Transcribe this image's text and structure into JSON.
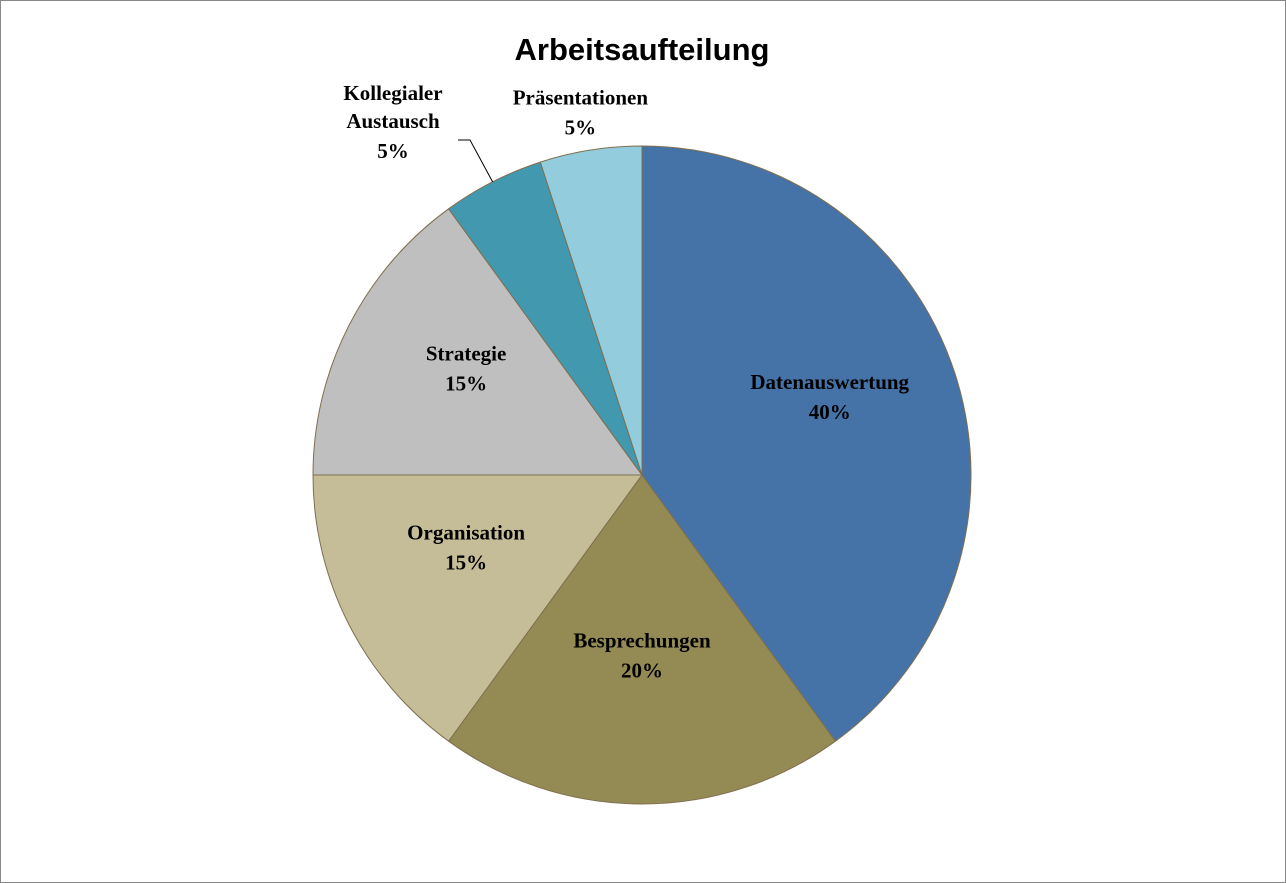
{
  "chart_data": {
    "type": "pie",
    "title": "Arbeitsaufteilung",
    "categories": [
      "Datenauswertung",
      "Besprechungen",
      "Organisation",
      "Strategie",
      "Kollegialer Austausch",
      "Präsentationen"
    ],
    "values": [
      40,
      20,
      15,
      15,
      5,
      5
    ],
    "value_labels": [
      "40%",
      "20%",
      "15%",
      "15%",
      "5%",
      "5%"
    ],
    "colors": [
      "#4572a7",
      "#948a54",
      "#c4bd97",
      "#bfbfbf",
      "#4198af",
      "#93cddd"
    ]
  }
}
